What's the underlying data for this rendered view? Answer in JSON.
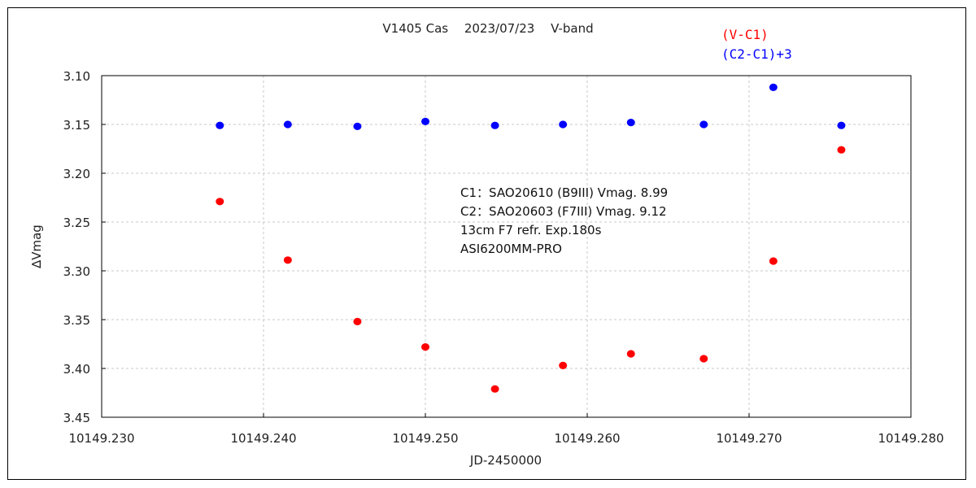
{
  "chart_data": {
    "type": "scatter",
    "title": "V1405 Cas　 2023/07/23　 V-band",
    "xlabel": "JD-2450000",
    "ylabel": "∆Vmag",
    "xlim": [
      10149.23,
      10149.28
    ],
    "ylim": [
      3.45,
      3.1
    ],
    "y_inverted": true,
    "grid": true,
    "x_ticks": [
      "10149.230",
      "10149.240",
      "10149.250",
      "10149.260",
      "10149.270",
      "10149.280"
    ],
    "y_ticks": [
      "3.10",
      "3.15",
      "3.20",
      "3.25",
      "3.30",
      "3.35",
      "3.40",
      "3.45"
    ],
    "legend_position": "top-right",
    "series": [
      {
        "name": "(V-C1)",
        "color": "#ff0000",
        "x": [
          10149.2373,
          10149.2415,
          10149.2458,
          10149.25,
          10149.2543,
          10149.2585,
          10149.2627,
          10149.2672,
          10149.2715,
          10149.2757
        ],
        "y": [
          3.229,
          3.289,
          3.352,
          3.378,
          3.421,
          3.397,
          3.385,
          3.39,
          3.29,
          3.176
        ]
      },
      {
        "name": "(C2-C1)+3",
        "color": "#0000ff",
        "x": [
          10149.2373,
          10149.2415,
          10149.2458,
          10149.25,
          10149.2543,
          10149.2585,
          10149.2627,
          10149.2672,
          10149.2715,
          10149.2757
        ],
        "y": [
          3.151,
          3.15,
          3.152,
          3.147,
          3.151,
          3.15,
          3.148,
          3.15,
          3.112,
          3.151
        ]
      }
    ],
    "annotations": [
      "C1：SAO20610 (B9III) Vmag. 8.99",
      "C2：SAO20603 (F7III) Vmag. 9.12",
      "13cm F7 refr.  Exp.180s",
      "ASI6200MM-PRO"
    ]
  }
}
